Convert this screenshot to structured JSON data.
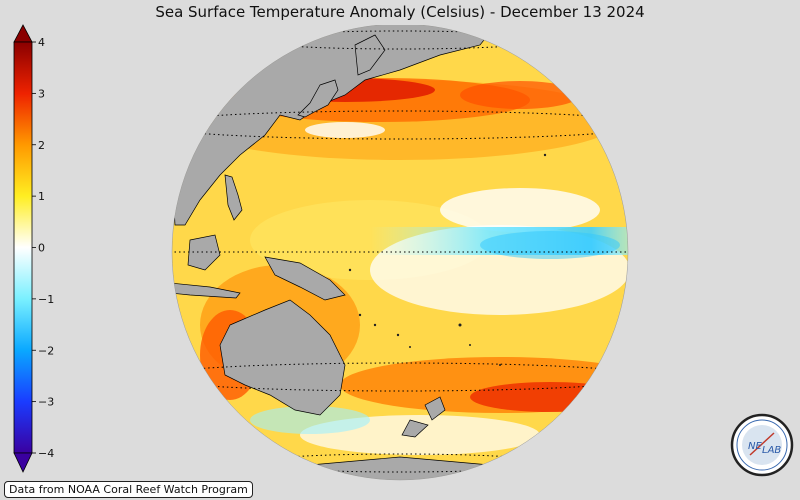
{
  "title": "Sea Surface Temperature Anomaly (Celsius) - December 13 2024",
  "credit": "Data from NOAA Coral Reef Watch Program",
  "logo": {
    "text_part1": "NE",
    "text_part2": "LAB"
  },
  "colorbar": {
    "min": -4,
    "max": 4,
    "tick_labels": [
      "4",
      "3",
      "2",
      "1",
      "0",
      "−1",
      "−2",
      "−3",
      "−4"
    ],
    "stops": [
      {
        "v": -4,
        "color": "#3a00a0"
      },
      {
        "v": -3,
        "color": "#1a3cff"
      },
      {
        "v": -2,
        "color": "#0aa8ff"
      },
      {
        "v": -1,
        "color": "#7af0ff"
      },
      {
        "v": 0,
        "color": "#ffffff"
      },
      {
        "v": 1,
        "color": "#ffee22"
      },
      {
        "v": 2,
        "color": "#ff9900"
      },
      {
        "v": 3,
        "color": "#ee2200"
      },
      {
        "v": 4,
        "color": "#8a0000"
      }
    ]
  },
  "colors": {
    "land": "#a9a9a9",
    "background": "#dcdcdc",
    "ocean_base": "#ffd84a"
  }
}
